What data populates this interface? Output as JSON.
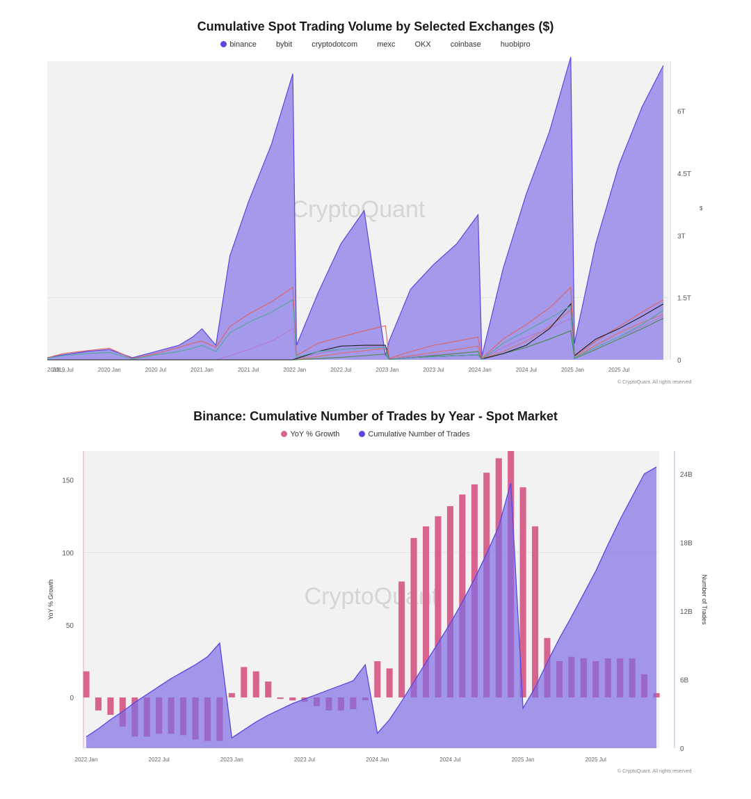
{
  "chart_data": [
    {
      "type": "area",
      "title": "Cumulative Spot Trading Volume by Selected Exchanges ($)",
      "legend": [
        {
          "name": "binance",
          "color": "#5b47e0",
          "marker": true
        },
        {
          "name": "bybit"
        },
        {
          "name": "cryptodotcom"
        },
        {
          "name": "mexc"
        },
        {
          "name": "OKX"
        },
        {
          "name": "coinbase"
        },
        {
          "name": "huobipro"
        }
      ],
      "x_ticks": [
        "2019 ...",
        "2019 Jul",
        "2020 Jan",
        "2020 Jul",
        "2021 Jan",
        "2021 Jul",
        "2022 Jan",
        "2022 Jul",
        "2023 Jan",
        "2023 Jul",
        "2024 Jan",
        "2024 Jul",
        "2025 Jan",
        "2025 Jul"
      ],
      "y_ticks": [
        "0",
        "1.5T",
        "3T",
        "4.5T",
        "6T"
      ],
      "ylim": [
        0,
        7.2
      ],
      "watermark": "CryptoQuant",
      "credit": "© CryptoQuant. All rights reserved",
      "x": [
        2019.33,
        2019.5,
        2019.75,
        2020.0,
        2020.25,
        2020.5,
        2020.75,
        2020.9,
        2021.0,
        2021.15,
        2021.3,
        2021.5,
        2021.75,
        2021.98,
        2022.02,
        2022.25,
        2022.5,
        2022.75,
        2022.98,
        2023.02,
        2023.25,
        2023.5,
        2023.75,
        2023.98,
        2024.02,
        2024.25,
        2024.5,
        2024.75,
        2024.98,
        2025.02,
        2025.25,
        2025.5,
        2025.75,
        2025.98
      ],
      "series": [
        {
          "name": "binance",
          "color": "#5b47e0",
          "fill": "#9f93e9",
          "values": [
            0.05,
            0.12,
            0.2,
            0.25,
            0.05,
            0.2,
            0.35,
            0.55,
            0.75,
            0.35,
            2.5,
            3.8,
            5.2,
            6.9,
            0.35,
            1.6,
            2.8,
            3.6,
            0.1,
            0.45,
            1.7,
            2.3,
            2.8,
            3.5,
            0.08,
            2.2,
            4.0,
            5.5,
            7.3,
            0.4,
            2.8,
            4.7,
            6.1,
            7.1
          ]
        },
        {
          "name": "bybit",
          "color": "#d9716a",
          "fill": "none",
          "values": [
            0,
            0,
            0,
            0,
            0,
            0,
            0,
            0,
            0,
            0,
            0,
            0,
            0,
            0,
            0,
            0.08,
            0.16,
            0.22,
            0.28,
            0.02,
            0.1,
            0.18,
            0.25,
            0.33,
            0.02,
            0.2,
            0.45,
            0.8,
            1.2,
            0.05,
            0.35,
            0.65,
            0.9,
            1.1
          ]
        },
        {
          "name": "cryptodotcom",
          "color": "#b07bd0",
          "fill": "none",
          "values": [
            0,
            0,
            0,
            0,
            0,
            0,
            0,
            0,
            0,
            0,
            0.1,
            0.25,
            0.45,
            0.75,
            0.02,
            0.15,
            0.25,
            0.3,
            0.35,
            0.02,
            0.08,
            0.12,
            0.16,
            0.2,
            0.02,
            0.3,
            0.55,
            0.75,
            1.0,
            0.05,
            0.3,
            0.55,
            0.8,
            1.05
          ]
        },
        {
          "name": "mexc",
          "color": "#4a8a4a",
          "fill": "none",
          "values": [
            0,
            0,
            0,
            0,
            0,
            0,
            0,
            0,
            0,
            0,
            0,
            0,
            0,
            0,
            0,
            0.03,
            0.06,
            0.1,
            0.14,
            0.01,
            0.05,
            0.1,
            0.15,
            0.2,
            0.02,
            0.15,
            0.3,
            0.5,
            0.7,
            0.03,
            0.25,
            0.5,
            0.75,
            1.0
          ]
        },
        {
          "name": "OKX",
          "color": "#e06262",
          "fill": "none",
          "values": [
            0.05,
            0.15,
            0.22,
            0.28,
            0.03,
            0.15,
            0.3,
            0.4,
            0.45,
            0.3,
            0.8,
            1.1,
            1.4,
            1.75,
            0.1,
            0.4,
            0.55,
            0.7,
            0.82,
            0.03,
            0.2,
            0.35,
            0.45,
            0.55,
            0.03,
            0.5,
            0.85,
            1.25,
            1.75,
            0.08,
            0.45,
            0.8,
            1.15,
            1.45
          ]
        },
        {
          "name": "coinbase",
          "color": "#1a1a1a",
          "fill": "none",
          "values": [
            0,
            0,
            0,
            0,
            0,
            0,
            0,
            0,
            0,
            0,
            0,
            0,
            0,
            0,
            0.03,
            0.2,
            0.33,
            0.35,
            0.35,
            0.01,
            0.05,
            0.08,
            0.1,
            0.12,
            0.02,
            0.15,
            0.35,
            0.75,
            1.35,
            0.1,
            0.5,
            0.75,
            1.05,
            1.35
          ]
        },
        {
          "name": "huobipro",
          "color": "#4fa8a0",
          "fill": "none",
          "values": [
            0.04,
            0.1,
            0.15,
            0.18,
            0.02,
            0.12,
            0.2,
            0.28,
            0.35,
            0.2,
            0.65,
            0.9,
            1.15,
            1.45,
            0.06,
            0.2,
            0.25,
            0.28,
            0.3,
            0.01,
            0.05,
            0.08,
            0.1,
            0.12,
            0.01,
            0.4,
            0.7,
            1.0,
            1.3,
            0.05,
            0.3,
            0.55,
            0.85,
            1.2
          ]
        }
      ]
    },
    {
      "type": "bar",
      "title": "Binance: Cumulative Number of Trades by Year - Spot Market",
      "legend": [
        {
          "name": "YoY % Growth",
          "color": "#d9638f"
        },
        {
          "name": "Cumulative Number of Trades",
          "color": "#5b47e0"
        }
      ],
      "x_ticks": [
        "2022 Jan",
        "2022 Jul",
        "2023 Jan",
        "2023 Jul",
        "2024 Jan",
        "2024 Jul",
        "2025 Jan",
        "2025 Jul"
      ],
      "y_left_label": "YoY % Growth",
      "y_left_ticks": [
        "0",
        "50",
        "100",
        "150"
      ],
      "y_left_range": [
        -35,
        170
      ],
      "y_right_label": "Number of Trades",
      "y_right_ticks": [
        "0",
        "6B",
        "12B",
        "18B",
        "24B"
      ],
      "y_right_range": [
        0,
        26
      ],
      "watermark": "CryptoQuant",
      "credit": "© CryptoQuant. All rights reserved",
      "months": [
        "2022-01",
        "2022-02",
        "2022-03",
        "2022-04",
        "2022-05",
        "2022-06",
        "2022-07",
        "2022-08",
        "2022-09",
        "2022-10",
        "2022-11",
        "2022-12",
        "2023-01",
        "2023-02",
        "2023-03",
        "2023-04",
        "2023-05",
        "2023-06",
        "2023-07",
        "2023-08",
        "2023-09",
        "2023-10",
        "2023-11",
        "2023-12",
        "2024-01",
        "2024-02",
        "2024-03",
        "2024-04",
        "2024-05",
        "2024-06",
        "2024-07",
        "2024-08",
        "2024-09",
        "2024-10",
        "2024-11",
        "2024-12",
        "2025-01",
        "2025-02",
        "2025-03",
        "2025-04",
        "2025-05",
        "2025-06",
        "2025-07",
        "2025-08",
        "2025-09",
        "2025-10",
        "2025-11",
        "2025-12"
      ],
      "yoy_growth": [
        18,
        -9,
        -12,
        -20,
        -27,
        -27,
        -25,
        -25,
        -26,
        -29,
        -30,
        -30,
        3,
        21,
        18,
        11,
        -1,
        -2,
        -3,
        -6,
        -9,
        -9,
        -8,
        -2,
        25,
        20,
        80,
        110,
        118,
        125,
        132,
        140,
        147,
        155,
        165,
        170,
        145,
        118,
        41,
        25,
        28,
        27,
        25,
        27,
        27,
        27,
        16,
        3
      ],
      "cumulative_trades_billion": [
        1,
        1.7,
        2.5,
        3.2,
        4,
        4.7,
        5.4,
        6.1,
        6.7,
        7.3,
        8,
        9.2,
        0.9,
        1.6,
        2.3,
        2.9,
        3.4,
        3.9,
        4.3,
        4.7,
        5.1,
        5.5,
        5.9,
        7.3,
        1.3,
        2.5,
        4.1,
        5.8,
        7.5,
        9.2,
        10.9,
        12.8,
        14.8,
        17,
        19.4,
        23.2,
        3.5,
        5.3,
        7.5,
        9.6,
        11.5,
        13.5,
        15.5,
        17.8,
        20,
        22,
        24,
        24.6
      ]
    }
  ]
}
